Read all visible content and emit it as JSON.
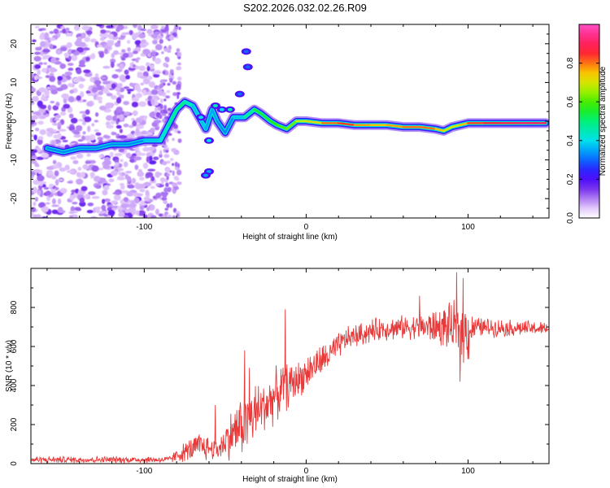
{
  "title": "S202.2026.032.02.26.R09",
  "chart_data": [
    {
      "type": "heatmap",
      "name": "spectrogram",
      "xlabel": "Height of straight line (km)",
      "ylabel": "Frequency (Hz)",
      "xlim": [
        -170,
        150
      ],
      "ylim": [
        -25,
        25
      ],
      "xticks": [
        -100,
        0,
        100
      ],
      "yticks": [
        -20,
        -10,
        0,
        10,
        20
      ],
      "colorbar": {
        "label": "Normalized spectral amplitude",
        "range": [
          0,
          1
        ],
        "ticks": [
          0.0,
          0.2,
          0.4,
          0.6,
          0.8
        ]
      },
      "ridge": [
        {
          "x": -160,
          "y": -7,
          "a": 0.35
        },
        {
          "x": -150,
          "y": -8,
          "a": 0.3
        },
        {
          "x": -140,
          "y": -7,
          "a": 0.35
        },
        {
          "x": -130,
          "y": -7,
          "a": 0.3
        },
        {
          "x": -120,
          "y": -6,
          "a": 0.35
        },
        {
          "x": -110,
          "y": -6,
          "a": 0.3
        },
        {
          "x": -100,
          "y": -5,
          "a": 0.35
        },
        {
          "x": -90,
          "y": -5,
          "a": 0.4
        },
        {
          "x": -85,
          "y": -1,
          "a": 0.45
        },
        {
          "x": -80,
          "y": 3,
          "a": 0.5
        },
        {
          "x": -75,
          "y": 5,
          "a": 0.5
        },
        {
          "x": -70,
          "y": 4,
          "a": 0.4
        },
        {
          "x": -62,
          "y": -2,
          "a": 0.35
        },
        {
          "x": -58,
          "y": 3,
          "a": 0.35
        },
        {
          "x": -55,
          "y": 0,
          "a": 0.35
        },
        {
          "x": -50,
          "y": -3,
          "a": 0.3
        },
        {
          "x": -45,
          "y": 1,
          "a": 0.35
        },
        {
          "x": -38,
          "y": 1,
          "a": 0.4
        },
        {
          "x": -32,
          "y": 3,
          "a": 0.55
        },
        {
          "x": -28,
          "y": 2,
          "a": 0.55
        },
        {
          "x": -22,
          "y": 0,
          "a": 0.55
        },
        {
          "x": -18,
          "y": -1,
          "a": 0.6
        },
        {
          "x": -12,
          "y": -2,
          "a": 0.6
        },
        {
          "x": -6,
          "y": 0,
          "a": 0.65
        },
        {
          "x": 0,
          "y": 0,
          "a": 0.7
        },
        {
          "x": 10,
          "y": -0.5,
          "a": 0.75
        },
        {
          "x": 20,
          "y": -0.5,
          "a": 0.85
        },
        {
          "x": 30,
          "y": -1,
          "a": 0.8
        },
        {
          "x": 40,
          "y": -1,
          "a": 0.75
        },
        {
          "x": 50,
          "y": -1,
          "a": 0.75
        },
        {
          "x": 60,
          "y": -1.5,
          "a": 0.8
        },
        {
          "x": 70,
          "y": -1.5,
          "a": 0.8
        },
        {
          "x": 80,
          "y": -2,
          "a": 0.8
        },
        {
          "x": 85,
          "y": -2.5,
          "a": 0.7
        },
        {
          "x": 90,
          "y": -1.5,
          "a": 0.7
        },
        {
          "x": 95,
          "y": -1,
          "a": 0.7
        },
        {
          "x": 100,
          "y": -0.5,
          "a": 0.8
        },
        {
          "x": 110,
          "y": -0.5,
          "a": 0.85
        },
        {
          "x": 120,
          "y": -0.5,
          "a": 0.85
        },
        {
          "x": 130,
          "y": -0.5,
          "a": 0.9
        },
        {
          "x": 140,
          "y": -0.5,
          "a": 0.9
        },
        {
          "x": 148,
          "y": -0.5,
          "a": 0.9
        }
      ],
      "blobs": [
        {
          "x": -41,
          "y": 7,
          "a": 0.3
        },
        {
          "x": -36,
          "y": 14,
          "a": 0.3
        },
        {
          "x": -37,
          "y": 18,
          "a": 0.3
        },
        {
          "x": -60,
          "y": -13,
          "a": 0.35
        },
        {
          "x": -62,
          "y": -14,
          "a": 0.35
        },
        {
          "x": -56,
          "y": 4,
          "a": 0.45
        },
        {
          "x": -52,
          "y": 3,
          "a": 0.4
        },
        {
          "x": -65,
          "y": 1,
          "a": 0.4
        },
        {
          "x": -60,
          "y": -5,
          "a": 0.4
        },
        {
          "x": -47,
          "y": 3,
          "a": 0.45
        }
      ]
    },
    {
      "type": "line",
      "name": "snr",
      "xlabel": "Height of straight line (km)",
      "ylabel": "SNR (10 * v/v)",
      "xlim": [
        -170,
        150
      ],
      "ylim": [
        0,
        1000
      ],
      "xticks": [
        -100,
        0,
        100
      ],
      "yticks": [
        0,
        200,
        400,
        600,
        800
      ],
      "color": "#e83a3a",
      "envelope": [
        {
          "x": -170,
          "base": 20,
          "noise": 20
        },
        {
          "x": -85,
          "base": 20,
          "noise": 20
        },
        {
          "x": -75,
          "base": 60,
          "noise": 60
        },
        {
          "x": -65,
          "base": 90,
          "noise": 90
        },
        {
          "x": -55,
          "base": 70,
          "noise": 60
        },
        {
          "x": -45,
          "base": 160,
          "noise": 160
        },
        {
          "x": -35,
          "base": 230,
          "noise": 200
        },
        {
          "x": -25,
          "base": 300,
          "noise": 160
        },
        {
          "x": -15,
          "base": 380,
          "noise": 150
        },
        {
          "x": -5,
          "base": 430,
          "noise": 110
        },
        {
          "x": 5,
          "base": 500,
          "noise": 100
        },
        {
          "x": 15,
          "base": 560,
          "noise": 90
        },
        {
          "x": 25,
          "base": 640,
          "noise": 70
        },
        {
          "x": 45,
          "base": 690,
          "noise": 70
        },
        {
          "x": 65,
          "base": 700,
          "noise": 70
        },
        {
          "x": 85,
          "base": 700,
          "noise": 120
        },
        {
          "x": 100,
          "base": 680,
          "noise": 200
        },
        {
          "x": 104,
          "base": 700,
          "noise": 60
        },
        {
          "x": 150,
          "base": 690,
          "noise": 40
        }
      ],
      "spikes": [
        {
          "x": -56,
          "y": 300
        },
        {
          "x": -38,
          "y": 580
        },
        {
          "x": -35,
          "y": 490
        },
        {
          "x": -13,
          "y": 790
        },
        {
          "x": 70,
          "y": 860
        },
        {
          "x": 93,
          "y": 980
        },
        {
          "x": 97,
          "y": 950
        },
        {
          "x": 95,
          "y": 420
        }
      ]
    }
  ]
}
